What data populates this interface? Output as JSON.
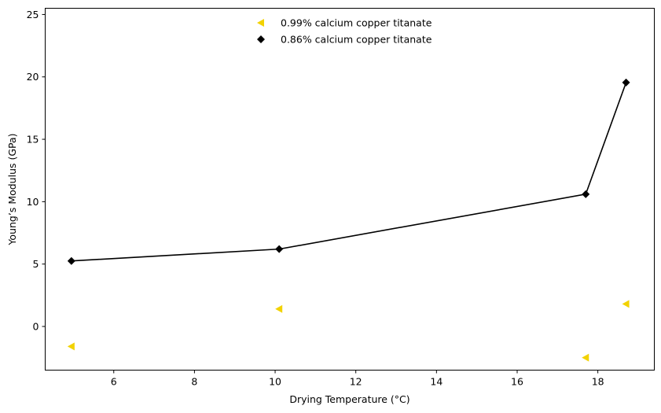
{
  "chart_data": {
    "type": "scatter",
    "title": "",
    "xlabel": "Drying Temperature (°C)",
    "ylabel": "Young’s Modulus (GPa)",
    "xlim": [
      4.3,
      19.4
    ],
    "ylim": [
      -3.5,
      25.5
    ],
    "xticks": [
      6,
      8,
      10,
      12,
      14,
      16,
      18
    ],
    "yticks": [
      0,
      5,
      10,
      15,
      20,
      25
    ],
    "grid": false,
    "legend_position": "top-center",
    "series": [
      {
        "name": "0.99% calcium copper titanate",
        "marker": "triangle-left",
        "color": "#f2d200",
        "line": false,
        "x": [
          4.95,
          10.1,
          17.7,
          18.7
        ],
        "y": [
          -1.6,
          1.4,
          -2.5,
          1.8
        ]
      },
      {
        "name": "0.86% calcium copper titanate",
        "marker": "diamond",
        "color": "#000000",
        "line": true,
        "x": [
          4.95,
          10.1,
          17.7,
          18.7
        ],
        "y": [
          5.25,
          6.2,
          10.6,
          19.55
        ]
      }
    ]
  }
}
